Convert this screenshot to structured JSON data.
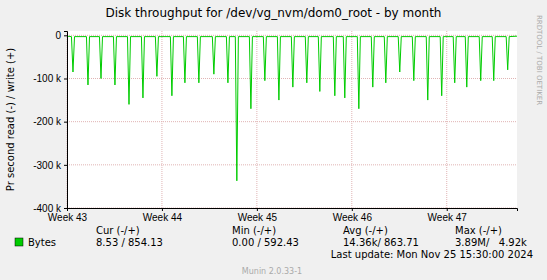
{
  "chart_data": {
    "type": "line",
    "title": "Disk throughput for /dev/vg_nvm/dom0_root - by month",
    "y_label": "Pr second read (-) / write (+)",
    "side_label": "RRDTOOL / TOBI OETIKER",
    "last_update": "Last update: Mon Nov 25 15:30:00 2024",
    "footer": "Munin 2.0.33-1",
    "stats": {
      "headers": [
        "Cur (-/+)",
        "Min (-/+)",
        "Avg (-/+)",
        "Max (-/+)"
      ],
      "values": [
        "8.53 / 854.13",
        "0.00 / 592.43",
        "14.36k/ 863.71",
        "3.89M/   4.92k"
      ]
    },
    "x": [
      43.0,
      43.047,
      43.063,
      43.079,
      43.205,
      43.221,
      43.237,
      43.342,
      43.358,
      43.374,
      43.489,
      43.505,
      43.521,
      43.637,
      43.653,
      43.669,
      43.784,
      43.8,
      43.816,
      43.931,
      43.947,
      43.963,
      44.089,
      44.105,
      44.121,
      44.226,
      44.242,
      44.258,
      44.373,
      44.389,
      44.405,
      44.531,
      44.547,
      44.563,
      44.679,
      44.695,
      44.711,
      44.773,
      44.789,
      44.805,
      44.921,
      44.937,
      44.953,
      45.068,
      45.084,
      45.1,
      45.216,
      45.232,
      45.248,
      45.363,
      45.379,
      45.395,
      45.51,
      45.526,
      45.542,
      45.647,
      45.663,
      45.679,
      45.805,
      45.821,
      45.837,
      45.91,
      45.926,
      45.942,
      46.058,
      46.074,
      46.09,
      46.205,
      46.221,
      46.237,
      46.342,
      46.358,
      46.374,
      46.489,
      46.505,
      46.521,
      46.637,
      46.653,
      46.669,
      46.784,
      46.8,
      46.816,
      46.931,
      46.947,
      46.963,
      47.068,
      47.084,
      47.1,
      47.195,
      47.211,
      47.227,
      47.342,
      47.358,
      47.374,
      47.479,
      47.495,
      47.511,
      47.626,
      47.642,
      47.658,
      47.74
    ],
    "series": [
      {
        "name": "Bytes",
        "color": "#00cc00",
        "values": [
          -2000,
          -3000,
          -85000,
          -3000,
          -3000,
          -115000,
          -3000,
          -3000,
          -100000,
          -3000,
          -3000,
          -115000,
          -3000,
          -3000,
          -160000,
          -3000,
          -3000,
          -145000,
          -3000,
          -3000,
          -95000,
          -3000,
          -3000,
          -140000,
          -3000,
          -3000,
          -110000,
          -3000,
          -3000,
          -110000,
          -3000,
          -3000,
          -90000,
          -3000,
          -3000,
          -110000,
          -3000,
          -3000,
          -337000,
          -3000,
          -3000,
          -170000,
          -3000,
          -3000,
          -105000,
          -3000,
          -3000,
          -150000,
          -3000,
          -3000,
          -120000,
          -3000,
          -3000,
          -110000,
          -3000,
          -3000,
          -130000,
          -3000,
          -3000,
          -140000,
          -3000,
          -3000,
          -145000,
          -3000,
          -3000,
          -170000,
          -3000,
          -3000,
          -120000,
          -3000,
          -3000,
          -110000,
          -3000,
          -3000,
          -85000,
          -3000,
          -3000,
          -105000,
          -3000,
          -3000,
          -150000,
          -3000,
          -3000,
          -140000,
          -3000,
          -3000,
          -110000,
          -3000,
          -3000,
          -120000,
          -3000,
          -3000,
          -105000,
          -3000,
          -3000,
          -105000,
          -3000,
          -3000,
          -80000,
          -3000,
          -2000
        ]
      }
    ],
    "xlim": [
      43,
      47.74
    ],
    "xticks": [
      {
        "value": 43,
        "label": "Week 43"
      },
      {
        "value": 44,
        "label": "Week 44"
      },
      {
        "value": 45,
        "label": "Week 45"
      },
      {
        "value": 46,
        "label": "Week 46"
      },
      {
        "value": 47,
        "label": "Week 47"
      }
    ],
    "ylim": [
      -400000,
      10000
    ],
    "yticks": [
      {
        "value": -400000,
        "label": "-400 k"
      },
      {
        "value": -300000,
        "label": "-300 k"
      },
      {
        "value": -200000,
        "label": "-200 k"
      },
      {
        "value": -100000,
        "label": "-100 k"
      },
      0
    ],
    "grid": true,
    "legend": "bottom"
  }
}
